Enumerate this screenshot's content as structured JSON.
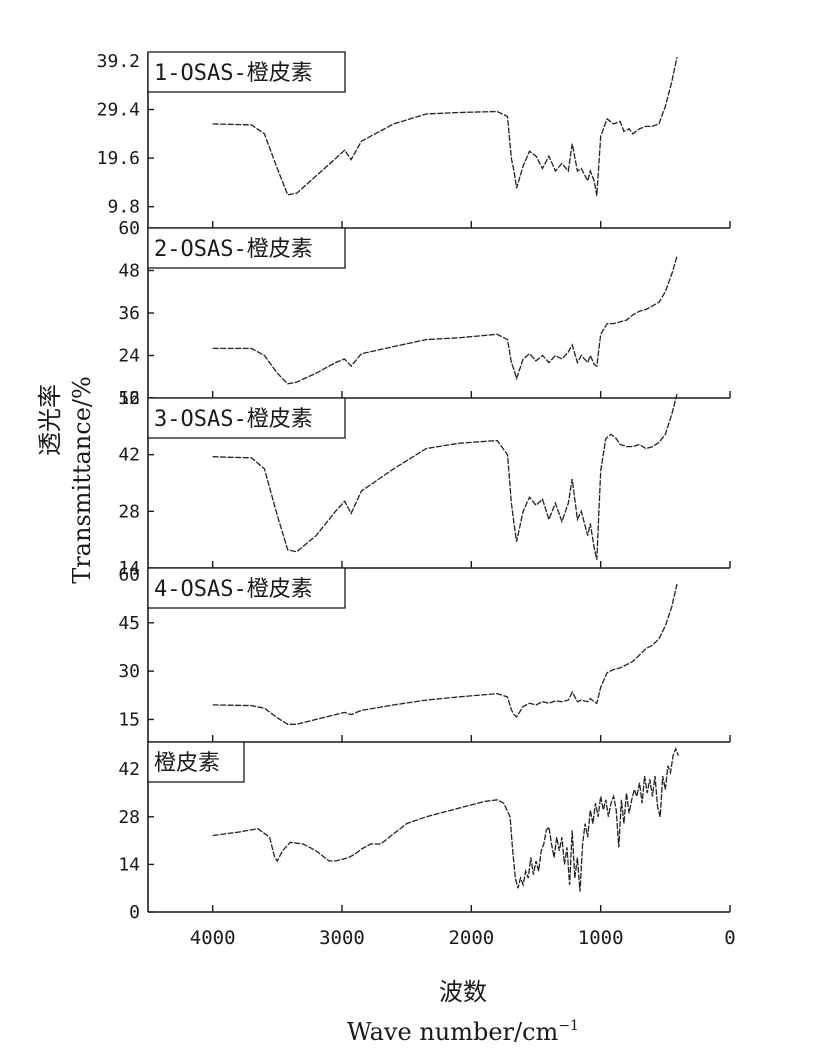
{
  "chart_data": {
    "type": "line",
    "xlabel_cn": "波数",
    "xlabel_en": "Wave  number/cm",
    "xlabel_en_sup": "−1",
    "ylabel_cn": "透光率",
    "ylabel_en": "Transmittance/%",
    "xlim": [
      4500,
      0
    ],
    "x_ticks": [
      4000,
      3000,
      2000,
      1000,
      0
    ],
    "x_tick_labels": [
      "4000",
      "3000",
      "2000",
      "1000",
      "0"
    ],
    "panels": [
      {
        "label": "1-OSAS-橙皮素",
        "ylim": [
          5.5,
          41
        ],
        "y_ticks": [
          9.8,
          19.6,
          29.4,
          39.2
        ],
        "y_tick_labels": [
          "9.8",
          "19.6",
          "29.4",
          "39.2"
        ],
        "points": [
          [
            4000,
            26.5
          ],
          [
            3700,
            26.3
          ],
          [
            3600,
            24.5
          ],
          [
            3500,
            17.5
          ],
          [
            3420,
            12.2
          ],
          [
            3350,
            12.5
          ],
          [
            3200,
            16
          ],
          [
            3050,
            19.5
          ],
          [
            2980,
            21.2
          ],
          [
            2930,
            19.3
          ],
          [
            2850,
            23
          ],
          [
            2600,
            26.5
          ],
          [
            2350,
            28.5
          ],
          [
            2100,
            28.8
          ],
          [
            1800,
            29.0
          ],
          [
            1720,
            28
          ],
          [
            1690,
            19.5
          ],
          [
            1670,
            17
          ],
          [
            1650,
            13.5
          ],
          [
            1600,
            18
          ],
          [
            1550,
            21
          ],
          [
            1500,
            20
          ],
          [
            1450,
            17.5
          ],
          [
            1400,
            20
          ],
          [
            1350,
            17
          ],
          [
            1300,
            18.5
          ],
          [
            1250,
            17
          ],
          [
            1220,
            22.5
          ],
          [
            1180,
            17
          ],
          [
            1150,
            17.5
          ],
          [
            1100,
            15
          ],
          [
            1080,
            17
          ],
          [
            1050,
            15
          ],
          [
            1030,
            12
          ],
          [
            1000,
            24
          ],
          [
            950,
            27.5
          ],
          [
            900,
            26.5
          ],
          [
            850,
            27
          ],
          [
            820,
            25
          ],
          [
            780,
            25.5
          ],
          [
            750,
            24.5
          ],
          [
            700,
            25.5
          ],
          [
            650,
            26
          ],
          [
            600,
            26
          ],
          [
            550,
            26.5
          ],
          [
            500,
            30
          ],
          [
            450,
            35
          ],
          [
            410,
            40
          ]
        ]
      },
      {
        "label": "2-OSAS-橙皮素",
        "ylim": [
          12,
          60
        ],
        "y_ticks": [
          12,
          24,
          36,
          48,
          60
        ],
        "y_tick_labels": [
          "12",
          "24",
          "36",
          "48",
          "60"
        ],
        "points": [
          [
            4000,
            26
          ],
          [
            3700,
            26
          ],
          [
            3600,
            24
          ],
          [
            3500,
            19
          ],
          [
            3420,
            16
          ],
          [
            3350,
            16.5
          ],
          [
            3200,
            19
          ],
          [
            3050,
            22
          ],
          [
            2980,
            23
          ],
          [
            2930,
            21
          ],
          [
            2850,
            24.5
          ],
          [
            2600,
            26.5
          ],
          [
            2350,
            28.5
          ],
          [
            2100,
            29
          ],
          [
            1800,
            30
          ],
          [
            1720,
            28.5
          ],
          [
            1690,
            22
          ],
          [
            1670,
            20
          ],
          [
            1650,
            17.5
          ],
          [
            1600,
            23
          ],
          [
            1550,
            24.5
          ],
          [
            1500,
            22.5
          ],
          [
            1450,
            24
          ],
          [
            1400,
            22
          ],
          [
            1350,
            24
          ],
          [
            1300,
            23
          ],
          [
            1250,
            25
          ],
          [
            1220,
            27
          ],
          [
            1180,
            22
          ],
          [
            1150,
            24
          ],
          [
            1100,
            22
          ],
          [
            1080,
            24
          ],
          [
            1050,
            21.5
          ],
          [
            1030,
            21
          ],
          [
            1000,
            30
          ],
          [
            950,
            33
          ],
          [
            900,
            33
          ],
          [
            850,
            33.5
          ],
          [
            800,
            34
          ],
          [
            750,
            35.5
          ],
          [
            700,
            36.5
          ],
          [
            650,
            37
          ],
          [
            600,
            38
          ],
          [
            550,
            39
          ],
          [
            500,
            42
          ],
          [
            450,
            47
          ],
          [
            410,
            52
          ]
        ]
      },
      {
        "label": "3-OSAS-橙皮素",
        "ylim": [
          14,
          56
        ],
        "y_ticks": [
          14,
          28,
          42,
          56
        ],
        "y_tick_labels": [
          "14",
          "28",
          "42",
          "56"
        ],
        "points": [
          [
            4000,
            41.5
          ],
          [
            3700,
            41.2
          ],
          [
            3600,
            38.5
          ],
          [
            3500,
            27
          ],
          [
            3420,
            18.5
          ],
          [
            3350,
            18
          ],
          [
            3200,
            22
          ],
          [
            3050,
            28
          ],
          [
            2980,
            30.5
          ],
          [
            2930,
            27.5
          ],
          [
            2850,
            33
          ],
          [
            2600,
            38.5
          ],
          [
            2350,
            43.5
          ],
          [
            2100,
            44.8
          ],
          [
            1800,
            45.5
          ],
          [
            1720,
            42
          ],
          [
            1690,
            30
          ],
          [
            1670,
            25
          ],
          [
            1650,
            20.5
          ],
          [
            1600,
            28
          ],
          [
            1550,
            31.5
          ],
          [
            1500,
            29.5
          ],
          [
            1450,
            31
          ],
          [
            1400,
            26
          ],
          [
            1350,
            30
          ],
          [
            1300,
            25.5
          ],
          [
            1250,
            30
          ],
          [
            1220,
            36
          ],
          [
            1180,
            26
          ],
          [
            1150,
            28
          ],
          [
            1100,
            22
          ],
          [
            1080,
            25
          ],
          [
            1050,
            19
          ],
          [
            1030,
            16
          ],
          [
            1000,
            38
          ],
          [
            960,
            46
          ],
          [
            920,
            47
          ],
          [
            880,
            46
          ],
          [
            850,
            44.5
          ],
          [
            800,
            44
          ],
          [
            750,
            44
          ],
          [
            700,
            44.5
          ],
          [
            650,
            43.5
          ],
          [
            600,
            44
          ],
          [
            550,
            45
          ],
          [
            500,
            47
          ],
          [
            450,
            52
          ],
          [
            410,
            57
          ]
        ]
      },
      {
        "label": "4-OSAS-橙皮素",
        "ylim": [
          8,
          62
        ],
        "y_ticks": [
          15,
          30,
          45,
          60
        ],
        "y_tick_labels": [
          "15",
          "30",
          "45",
          "60"
        ],
        "points": [
          [
            4000,
            19.5
          ],
          [
            3700,
            19.3
          ],
          [
            3600,
            18.5
          ],
          [
            3500,
            15.5
          ],
          [
            3420,
            13.5
          ],
          [
            3350,
            13.5
          ],
          [
            3200,
            15
          ],
          [
            3050,
            16.5
          ],
          [
            2980,
            17.2
          ],
          [
            2930,
            16.5
          ],
          [
            2850,
            17.8
          ],
          [
            2600,
            19.5
          ],
          [
            2350,
            21
          ],
          [
            2100,
            22
          ],
          [
            1800,
            23
          ],
          [
            1720,
            22
          ],
          [
            1690,
            18
          ],
          [
            1670,
            16.5
          ],
          [
            1650,
            15.8
          ],
          [
            1600,
            19
          ],
          [
            1550,
            20
          ],
          [
            1500,
            19.5
          ],
          [
            1450,
            20.5
          ],
          [
            1400,
            20
          ],
          [
            1350,
            20.8
          ],
          [
            1300,
            20.5
          ],
          [
            1250,
            21
          ],
          [
            1220,
            23.5
          ],
          [
            1180,
            20.5
          ],
          [
            1150,
            21
          ],
          [
            1100,
            20.5
          ],
          [
            1080,
            21.5
          ],
          [
            1050,
            20.5
          ],
          [
            1030,
            20
          ],
          [
            1000,
            25
          ],
          [
            950,
            29.5
          ],
          [
            900,
            30.5
          ],
          [
            850,
            31
          ],
          [
            800,
            32
          ],
          [
            750,
            33
          ],
          [
            700,
            35
          ],
          [
            650,
            37
          ],
          [
            600,
            38
          ],
          [
            550,
            40
          ],
          [
            500,
            44
          ],
          [
            450,
            50
          ],
          [
            410,
            57
          ]
        ]
      },
      {
        "label": "橙皮素",
        "ylim": [
          0,
          50
        ],
        "y_ticks": [
          0,
          14,
          28,
          42
        ],
        "y_tick_labels": [
          "0",
          "14",
          "28",
          "42"
        ],
        "points": [
          [
            4000,
            22.5
          ],
          [
            3800,
            23.5
          ],
          [
            3650,
            24.5
          ],
          [
            3560,
            22
          ],
          [
            3520,
            16
          ],
          [
            3500,
            15
          ],
          [
            3460,
            18
          ],
          [
            3400,
            20.5
          ],
          [
            3300,
            20
          ],
          [
            3200,
            18
          ],
          [
            3100,
            15
          ],
          [
            3050,
            15
          ],
          [
            2950,
            16
          ],
          [
            2900,
            17
          ],
          [
            2850,
            18.5
          ],
          [
            2780,
            20
          ],
          [
            2700,
            20
          ],
          [
            2600,
            23
          ],
          [
            2500,
            26
          ],
          [
            2350,
            28
          ],
          [
            2100,
            30.5
          ],
          [
            1900,
            32.5
          ],
          [
            1800,
            33
          ],
          [
            1750,
            32
          ],
          [
            1700,
            28
          ],
          [
            1680,
            18
          ],
          [
            1660,
            10
          ],
          [
            1640,
            7
          ],
          [
            1620,
            10
          ],
          [
            1600,
            8
          ],
          [
            1580,
            12
          ],
          [
            1560,
            10
          ],
          [
            1540,
            16
          ],
          [
            1520,
            11
          ],
          [
            1500,
            15
          ],
          [
            1480,
            12
          ],
          [
            1460,
            18
          ],
          [
            1440,
            20
          ],
          [
            1420,
            24
          ],
          [
            1400,
            25
          ],
          [
            1380,
            20
          ],
          [
            1360,
            16
          ],
          [
            1340,
            22
          ],
          [
            1320,
            18
          ],
          [
            1300,
            22
          ],
          [
            1280,
            14
          ],
          [
            1260,
            19
          ],
          [
            1240,
            8
          ],
          [
            1220,
            24
          ],
          [
            1200,
            10
          ],
          [
            1180,
            16
          ],
          [
            1160,
            6
          ],
          [
            1140,
            20
          ],
          [
            1120,
            26
          ],
          [
            1100,
            22
          ],
          [
            1080,
            30
          ],
          [
            1060,
            26
          ],
          [
            1040,
            32
          ],
          [
            1020,
            28
          ],
          [
            1000,
            34
          ],
          [
            980,
            30
          ],
          [
            960,
            33
          ],
          [
            940,
            28
          ],
          [
            920,
            32
          ],
          [
            900,
            34
          ],
          [
            880,
            30
          ],
          [
            860,
            19
          ],
          [
            840,
            33
          ],
          [
            820,
            26
          ],
          [
            800,
            35
          ],
          [
            780,
            29
          ],
          [
            760,
            33
          ],
          [
            740,
            36
          ],
          [
            720,
            34
          ],
          [
            700,
            38
          ],
          [
            680,
            32
          ],
          [
            660,
            40
          ],
          [
            640,
            35
          ],
          [
            620,
            39
          ],
          [
            600,
            34
          ],
          [
            580,
            40
          ],
          [
            560,
            31
          ],
          [
            540,
            28
          ],
          [
            520,
            40
          ],
          [
            500,
            36
          ],
          [
            480,
            43
          ],
          [
            460,
            41
          ],
          [
            440,
            46
          ],
          [
            420,
            48
          ],
          [
            400,
            46
          ]
        ]
      }
    ]
  }
}
